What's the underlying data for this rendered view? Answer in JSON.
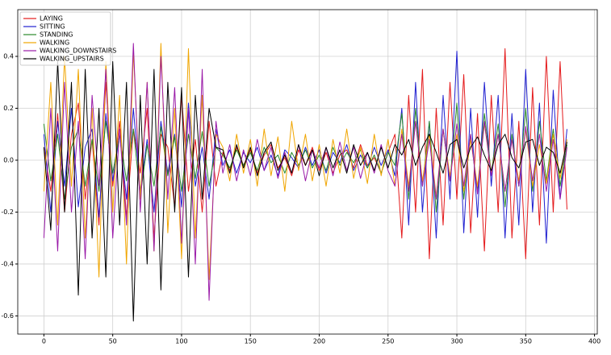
{
  "chart_data": {
    "type": "line",
    "x": [
      0,
      5,
      10,
      15,
      20,
      25,
      30,
      35,
      40,
      45,
      50,
      55,
      60,
      65,
      70,
      75,
      80,
      85,
      90,
      95,
      100,
      105,
      110,
      115,
      120,
      125,
      130,
      135,
      140,
      145,
      150,
      155,
      160,
      165,
      170,
      175,
      180,
      185,
      190,
      195,
      200,
      205,
      210,
      215,
      220,
      225,
      230,
      235,
      240,
      245,
      250,
      255,
      260,
      265,
      270,
      275,
      280,
      285,
      290,
      295,
      300,
      305,
      310,
      315,
      320,
      325,
      330,
      335,
      340,
      345,
      350,
      355,
      360,
      365,
      370,
      375,
      380
    ],
    "series": [
      {
        "name": "LAYING",
        "color": "#e41a1c",
        "values": [
          0.05,
          -0.12,
          0.18,
          -0.2,
          0.1,
          0.22,
          -0.15,
          0.08,
          -0.25,
          0.3,
          -0.1,
          0.15,
          -0.22,
          0.12,
          -0.05,
          0.2,
          -0.3,
          0.1,
          0.05,
          -0.18,
          0.25,
          -0.12,
          0.08,
          -0.2,
          0.15,
          -0.1,
          0.03,
          -0.04,
          0.05,
          -0.02,
          0.04,
          -0.05,
          0.02,
          0.06,
          -0.03,
          0.01,
          -0.06,
          0.04,
          -0.02,
          0.05,
          -0.04,
          0.03,
          -0.05,
          0.02,
          0.04,
          -0.03,
          0.06,
          -0.02,
          0.01,
          -0.05,
          0.03,
          0.1,
          -0.3,
          0.25,
          -0.2,
          0.35,
          -0.38,
          0.2,
          -0.25,
          0.3,
          -0.15,
          0.33,
          -0.28,
          0.18,
          -0.35,
          0.25,
          -0.2,
          0.43,
          -0.3,
          0.15,
          -0.38,
          0.28,
          -0.25,
          0.4,
          -0.2,
          0.38,
          -0.19
        ]
      },
      {
        "name": "SITTING",
        "color": "#1f1fd0",
        "values": [
          0.1,
          -0.2,
          0.15,
          -0.1,
          0.2,
          -0.18,
          0.05,
          0.12,
          -0.22,
          0.18,
          -0.08,
          0.1,
          -0.15,
          0.2,
          -0.12,
          0.08,
          -0.2,
          0.15,
          -0.05,
          0.1,
          -0.18,
          0.22,
          -0.1,
          0.05,
          -0.15,
          0.12,
          -0.02,
          0.04,
          -0.05,
          0.03,
          -0.01,
          0.05,
          -0.04,
          0.02,
          -0.06,
          0.04,
          0.01,
          -0.03,
          0.05,
          -0.02,
          0.04,
          -0.05,
          0.03,
          -0.01,
          0.06,
          -0.04,
          0.02,
          -0.03,
          0.05,
          -0.02,
          0.04,
          -0.06,
          0.2,
          -0.25,
          0.3,
          -0.2,
          0.15,
          -0.3,
          0.25,
          -0.15,
          0.42,
          -0.28,
          0.2,
          -0.22,
          0.3,
          -0.1,
          0.25,
          -0.3,
          0.18,
          -0.25,
          0.35,
          -0.2,
          0.22,
          -0.32,
          0.27,
          -0.15,
          0.12
        ]
      },
      {
        "name": "STANDING",
        "color": "#2a8a2a",
        "values": [
          0.14,
          -0.08,
          0.1,
          -0.15,
          0.05,
          0.12,
          -0.1,
          0.08,
          -0.12,
          0.15,
          -0.05,
          0.1,
          -0.08,
          0.12,
          -0.14,
          0.06,
          -0.1,
          0.13,
          -0.06,
          0.09,
          -0.12,
          0.1,
          -0.07,
          0.11,
          -0.1,
          0.05,
          0.02,
          -0.03,
          0.04,
          -0.02,
          0.03,
          -0.04,
          0.05,
          -0.01,
          0.02,
          -0.05,
          0.03,
          -0.02,
          0.04,
          -0.03,
          0.02,
          -0.04,
          0.05,
          -0.02,
          0.03,
          -0.01,
          0.04,
          -0.03,
          0.02,
          -0.05,
          0.03,
          -0.02,
          0.18,
          -0.15,
          0.2,
          -0.1,
          0.15,
          -0.2,
          0.12,
          -0.08,
          0.22,
          -0.15,
          0.1,
          -0.12,
          0.18,
          -0.05,
          0.14,
          -0.18,
          0.1,
          -0.1,
          0.2,
          -0.12,
          0.15,
          -0.08,
          0.12,
          -0.1,
          0.06
        ]
      },
      {
        "name": "WALKING",
        "color": "#f0a500",
        "values": [
          -0.12,
          0.3,
          -0.25,
          0.4,
          -0.1,
          0.35,
          -0.3,
          0.2,
          -0.45,
          0.38,
          -0.2,
          0.25,
          -0.4,
          0.42,
          -0.15,
          0.3,
          -0.35,
          0.45,
          -0.28,
          0.2,
          -0.38,
          0.43,
          -0.3,
          0.25,
          -0.46,
          0.1,
          0.05,
          -0.08,
          0.1,
          -0.05,
          0.08,
          -0.1,
          0.12,
          -0.06,
          0.09,
          -0.12,
          0.15,
          -0.04,
          0.1,
          -0.08,
          0.06,
          -0.1,
          0.08,
          -0.05,
          0.12,
          -0.07,
          0.05,
          -0.09,
          0.1,
          -0.06,
          0.08,
          -0.1,
          0.12,
          -0.1,
          0.15,
          -0.08,
          0.1,
          -0.14,
          0.12,
          -0.06,
          0.1,
          -0.12,
          0.08,
          -0.1,
          0.14,
          -0.05,
          0.1,
          -0.12,
          0.08,
          -0.08,
          0.12,
          -0.1,
          0.06,
          -0.09,
          0.1,
          -0.07,
          0.08
        ]
      },
      {
        "name": "WALKING_DOWNSTAIRS",
        "color": "#9a1aa8",
        "values": [
          -0.3,
          0.2,
          -0.35,
          0.3,
          -0.2,
          0.15,
          -0.38,
          0.25,
          -0.1,
          0.35,
          -0.3,
          0.12,
          -0.25,
          0.45,
          -0.2,
          0.3,
          -0.35,
          0.4,
          -0.15,
          0.28,
          -0.32,
          0.2,
          -0.4,
          0.35,
          -0.54,
          0.15,
          -0.05,
          0.06,
          -0.08,
          0.04,
          -0.06,
          0.08,
          -0.04,
          0.05,
          -0.07,
          0.03,
          -0.05,
          0.06,
          -0.08,
          0.04,
          -0.03,
          0.05,
          -0.06,
          0.07,
          -0.04,
          0.05,
          -0.07,
          0.03,
          -0.05,
          0.06,
          -0.04,
          -0.1,
          0.1,
          -0.12,
          0.15,
          -0.1,
          0.08,
          -0.15,
          0.12,
          -0.08,
          0.14,
          -0.1,
          0.1,
          -0.13,
          0.15,
          -0.06,
          0.1,
          -0.12,
          0.08,
          -0.1,
          0.13,
          -0.08,
          0.1,
          -0.12,
          0.08,
          -0.15,
          0.05
        ]
      },
      {
        "name": "WALKING_UPSTAIRS",
        "color": "#000000",
        "values": [
          0.05,
          -0.27,
          0.38,
          -0.2,
          0.3,
          -0.52,
          0.35,
          -0.3,
          0.2,
          -0.45,
          0.38,
          -0.25,
          0.3,
          -0.62,
          0.25,
          -0.4,
          0.35,
          -0.5,
          0.3,
          -0.2,
          0.28,
          -0.45,
          0.25,
          -0.15,
          0.2,
          0.05,
          0.04,
          -0.05,
          0.06,
          -0.03,
          0.05,
          -0.06,
          0.03,
          0.07,
          -0.04,
          0.02,
          -0.05,
          0.06,
          -0.02,
          0.04,
          -0.06,
          0.05,
          -0.03,
          0.04,
          -0.05,
          0.06,
          -0.02,
          0.03,
          -0.04,
          0.05,
          -0.03,
          0.06,
          0.02,
          0.08,
          -0.02,
          0.05,
          0.1,
          0.03,
          -0.05,
          0.06,
          0.08,
          -0.03,
          0.05,
          0.09,
          0.02,
          -0.04,
          0.06,
          0.1,
          0.01,
          -0.03,
          0.07,
          0.08,
          -0.02,
          0.05,
          0.03,
          -0.05,
          0.07
        ]
      }
    ],
    "xlim": [
      -19,
      402
    ],
    "xticks": [
      0,
      50,
      100,
      150,
      200,
      250,
      300,
      350,
      400
    ],
    "ylim": [
      -0.67,
      0.58
    ],
    "yticks": [
      -0.6,
      -0.4,
      -0.2,
      {
        "value": 0,
        "label": "0.0"
      },
      0.2,
      0.4
    ],
    "grid": true,
    "legend": "upper-left"
  }
}
